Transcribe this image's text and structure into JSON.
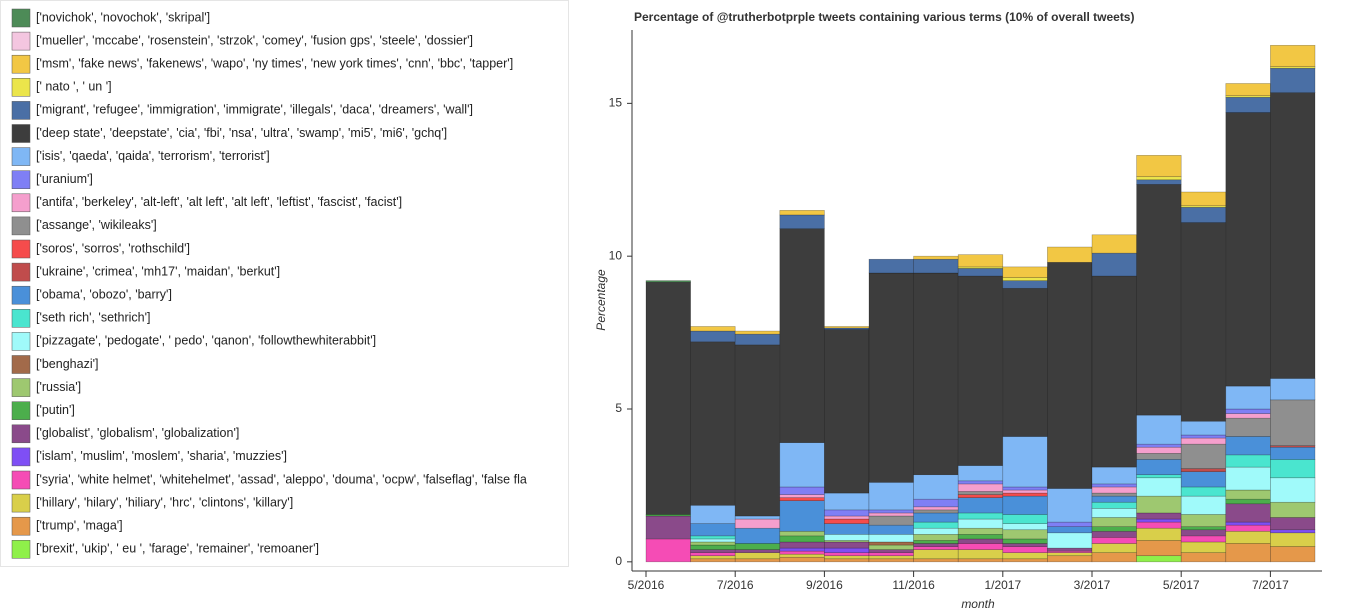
{
  "chart_data": {
    "type": "stacked_bar",
    "title": "Percentage of @trutherbotprple tweets containing various terms (10% of overall tweets)",
    "x_label": "month",
    "y_label": "Percentage",
    "categories": [
      "5/2016",
      null,
      "7/2016",
      null,
      "9/2016",
      null,
      "11/2016",
      null,
      "1/2017",
      null,
      "3/2017",
      null,
      "5/2017",
      null,
      "7/2017"
    ],
    "ylim": [
      -0.3,
      17.4
    ],
    "yticks": [
      0,
      5,
      10,
      15
    ],
    "series": [
      {
        "name": "['novichok', 'novochok', 'skripal']",
        "color": "#4d8b57",
        "values": [
          0.05,
          0,
          0,
          0,
          0,
          0,
          0,
          0,
          0,
          0,
          0,
          0,
          0,
          0,
          0
        ]
      },
      {
        "name": "['mueller', 'mccabe', 'rosenstein', 'strzok', 'comey', 'fusion gps', 'steele', 'dossier']",
        "color": "#f4c6e0",
        "values": [
          0,
          0,
          0,
          0,
          0,
          0,
          0,
          0,
          0,
          0,
          0,
          0,
          0,
          0,
          0
        ]
      },
      {
        "name": "['msm', 'fake news', 'fakenews', 'wapo', 'ny times', 'new york times', 'cnn', 'bbc', 'tapper']",
        "color": "#f2c744",
        "values": [
          0,
          0.15,
          0.1,
          0.15,
          0.05,
          0,
          0.1,
          0.4,
          0.35,
          0.5,
          0.6,
          0.7,
          0.45,
          0.4,
          0.7
        ]
      },
      {
        "name": "[' nato ', ' un ']",
        "color": "#ebe54b",
        "values": [
          0,
          0,
          0,
          0,
          0,
          0,
          0,
          0.05,
          0.1,
          0,
          0,
          0.1,
          0.05,
          0.05,
          0.05
        ]
      },
      {
        "name": "['migrant', 'refugee', 'immigration', 'immigrate', 'illegals', 'daca', 'dreamers', 'wall']",
        "color": "#4a6fa5",
        "values": [
          0,
          0.35,
          0.35,
          0.45,
          0.05,
          0.45,
          0.45,
          0.25,
          0.25,
          0,
          0.75,
          0.15,
          0.5,
          0.5,
          0.8
        ]
      },
      {
        "name": "['deep state', 'deepstate', 'cia', 'fbi', 'nsa', 'ultra', 'swamp', 'mi5', 'mi6', 'gchq']",
        "color": "#3d3d3d",
        "values": [
          7.6,
          5.35,
          5.6,
          7.0,
          5.35,
          6.85,
          6.6,
          6.2,
          4.85,
          7.4,
          6.25,
          7.55,
          6.5,
          8.95,
          9.35
        ]
      },
      {
        "name": "['isis', 'qaeda', 'qaida', 'terrorism', 'terrorist']",
        "color": "#7fb7f5",
        "values": [
          0,
          0.6,
          0.1,
          1.45,
          0.55,
          0.9,
          0.8,
          0.5,
          1.65,
          1.1,
          0.55,
          0.95,
          0.45,
          0.75,
          0.7
        ]
      },
      {
        "name": "['uranium']",
        "color": "#7f7ff5",
        "values": [
          0,
          0,
          0,
          0.25,
          0.2,
          0.1,
          0.25,
          0.1,
          0.1,
          0.15,
          0.1,
          0.1,
          0.1,
          0.15,
          0
        ]
      },
      {
        "name": "['antifa', 'berkeley', 'alt-left', 'alt left', 'alt left', 'leftist', 'fascist', 'facist']",
        "color": "#f59fcd",
        "values": [
          0,
          0,
          0.3,
          0.1,
          0.1,
          0.1,
          0.1,
          0.25,
          0.1,
          0,
          0.2,
          0.2,
          0.2,
          0.15,
          0
        ]
      },
      {
        "name": "['assange', 'wikileaks']",
        "color": "#8f8f8f",
        "values": [
          0,
          0,
          0,
          0,
          0,
          0.3,
          0.1,
          0.1,
          0,
          0,
          0.1,
          0.2,
          0.8,
          0.6,
          1.5
        ]
      },
      {
        "name": "['soros', 'sorros', 'rothschild']",
        "color": "#f54c4c",
        "values": [
          0,
          0,
          0,
          0.1,
          0.15,
          0,
          0,
          0.1,
          0.1,
          0,
          0,
          0,
          0,
          0,
          0
        ]
      },
      {
        "name": "['ukraine', 'crimea', 'mh17', 'maidan', 'berkut']",
        "color": "#c04c4c",
        "values": [
          0,
          0,
          0,
          0,
          0,
          0,
          0,
          0,
          0,
          0,
          0,
          0,
          0.1,
          0,
          0.05
        ]
      },
      {
        "name": "['obama', 'obozo', 'barry']",
        "color": "#4a90d9",
        "values": [
          0,
          0.4,
          0.5,
          1.0,
          0.35,
          0.3,
          0.3,
          0.5,
          0.6,
          0.2,
          0.2,
          0.5,
          0.5,
          0.6,
          0.4
        ]
      },
      {
        "name": "['seth rich', 'sethrich']",
        "color": "#4ae5cf",
        "values": [
          0,
          0.1,
          0,
          0,
          0,
          0,
          0.2,
          0.2,
          0.3,
          0,
          0.2,
          0.1,
          0.3,
          0.4,
          0.6
        ]
      },
      {
        "name": "['pizzagate', 'pedogate', ' pedo', 'qanon', 'followthewhiterabbit']",
        "color": "#a0fafa",
        "values": [
          0,
          0.1,
          0,
          0,
          0.2,
          0.25,
          0.2,
          0.3,
          0.2,
          0.5,
          0.3,
          0.6,
          0.6,
          0.75,
          0.8
        ]
      },
      {
        "name": "['benghazi']",
        "color": "#a26a4a",
        "values": [
          0,
          0,
          0,
          0,
          0,
          0.1,
          0,
          0,
          0,
          0,
          0,
          0,
          0,
          0,
          0
        ]
      },
      {
        "name": "['russia']",
        "color": "#9ec870",
        "values": [
          0,
          0.1,
          0,
          0.15,
          0.05,
          0.15,
          0.2,
          0.2,
          0.3,
          0,
          0.3,
          0.55,
          0.4,
          0.3,
          0.5
        ]
      },
      {
        "name": "['putin']",
        "color": "#4cae4c",
        "values": [
          0.05,
          0.15,
          0.2,
          0.2,
          0,
          0,
          0.1,
          0.15,
          0.15,
          0,
          0.15,
          0,
          0.1,
          0.15,
          0
        ]
      },
      {
        "name": "['globalist', 'globalism', 'globalization']",
        "color": "#8a4a8a",
        "values": [
          0.75,
          0.1,
          0.1,
          0.2,
          0.2,
          0.1,
          0.1,
          0.15,
          0.1,
          0.1,
          0.2,
          0.2,
          0.2,
          0.6,
          0.4
        ]
      },
      {
        "name": "['islam', 'muslim', 'moslem', 'sharia', 'muzzies']",
        "color": "#7f4ff5",
        "values": [
          0,
          0,
          0,
          0.1,
          0.15,
          0,
          0,
          0,
          0,
          0,
          0,
          0.1,
          0,
          0.1,
          0.1
        ]
      },
      {
        "name": "['syria', 'white helmet', 'whitehelmet', 'assad', 'aleppo', 'douma', 'ocpw', 'falseflag', 'false fla",
        "color": "#f54cb5",
        "values": [
          0.75,
          0.1,
          0,
          0.1,
          0.1,
          0.1,
          0.1,
          0.2,
          0.2,
          0.05,
          0.2,
          0.2,
          0.2,
          0.2,
          0
        ]
      },
      {
        "name": "['hillary', 'hilary', 'hiliary', 'hrc', 'clintons', 'killary']",
        "color": "#d9cf4a",
        "values": [
          0,
          0.1,
          0.2,
          0.1,
          0.1,
          0.1,
          0.3,
          0.3,
          0.2,
          0.1,
          0.3,
          0.4,
          0.35,
          0.4,
          0.45
        ]
      },
      {
        "name": "['trump', 'maga']",
        "color": "#e5984a",
        "values": [
          0,
          0.1,
          0.1,
          0.15,
          0.1,
          0.1,
          0.1,
          0.1,
          0.1,
          0.2,
          0.3,
          0.5,
          0.3,
          0.6,
          0.5
        ]
      },
      {
        "name": "['brexit', 'ukip', ' eu ', 'farage', 'remainer', 'remoaner']",
        "color": "#8ff04a",
        "values": [
          0,
          0,
          0,
          0,
          0,
          0,
          0,
          0,
          0,
          0,
          0,
          0.2,
          0,
          0,
          0
        ]
      }
    ]
  }
}
